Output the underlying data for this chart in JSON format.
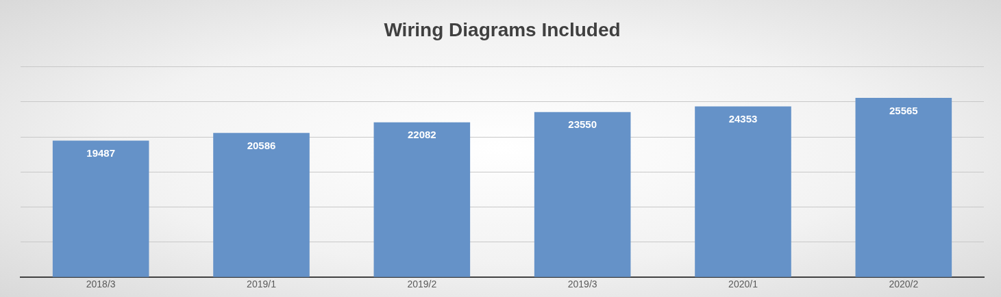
{
  "chart_data": {
    "type": "bar",
    "title": "Wiring Diagrams Included",
    "categories": [
      "2018/3",
      "2019/1",
      "2019/2",
      "2019/3",
      "2020/1",
      "2020/2"
    ],
    "values": [
      19487,
      20586,
      22082,
      23550,
      24353,
      25565
    ],
    "color": "#6592c8",
    "ylim": [
      0,
      30000
    ],
    "yticks": [
      {
        "value": 0,
        "label": null
      },
      {
        "value": 5000,
        "label": null
      },
      {
        "value": 10000,
        "label": null
      },
      {
        "value": 15000,
        "label": null
      },
      {
        "value": 20000,
        "label": null
      },
      {
        "value": 25000,
        "label": null
      },
      {
        "value": 30000,
        "label": null
      }
    ],
    "grid": "y",
    "tick_labels": "x",
    "data_labels": true
  }
}
